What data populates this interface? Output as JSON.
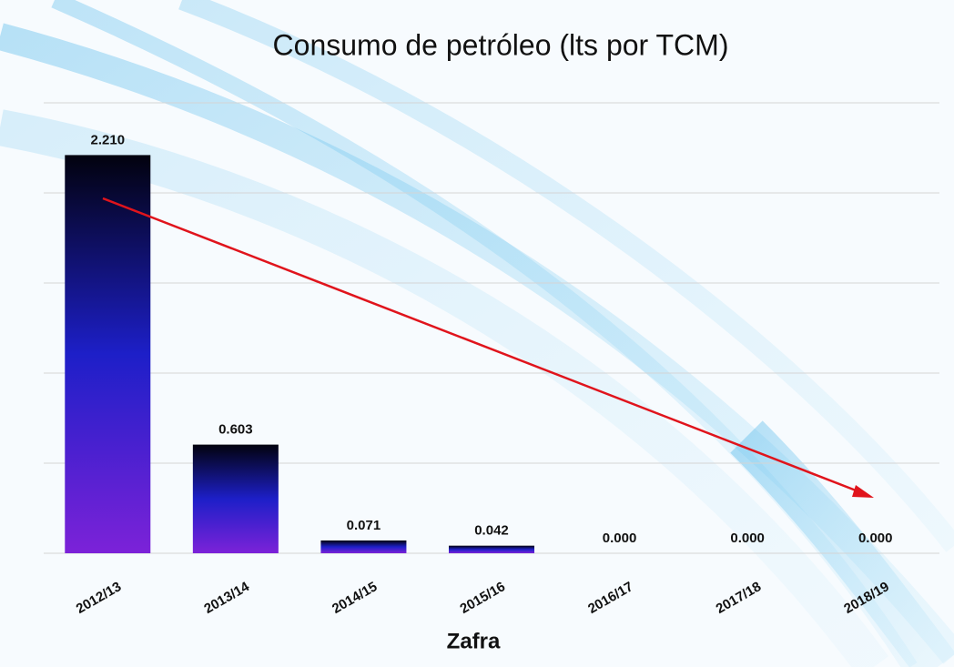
{
  "chart_data": {
    "type": "bar",
    "title": "Consumo de petróleo (lts por TCM)",
    "x_label": "Zafra",
    "categories": [
      "2012/13",
      "2013/14",
      "2014/15",
      "2015/16",
      "2016/17",
      "2017/18",
      "2018/19"
    ],
    "values": [
      2.21,
      0.603,
      0.071,
      0.042,
      0,
      0,
      0
    ],
    "value_labels": [
      "2.210",
      "0.603",
      "0.071",
      "0.042",
      "0.000",
      "0.000",
      "0.000"
    ],
    "colors": [
      "#02020e",
      "#1d1fc8",
      "#7c22d8"
    ],
    "ylim": [
      0,
      2.5
    ],
    "yticks": [
      0,
      0.5,
      1,
      1.5,
      2,
      2.5
    ],
    "grid": true
  }
}
